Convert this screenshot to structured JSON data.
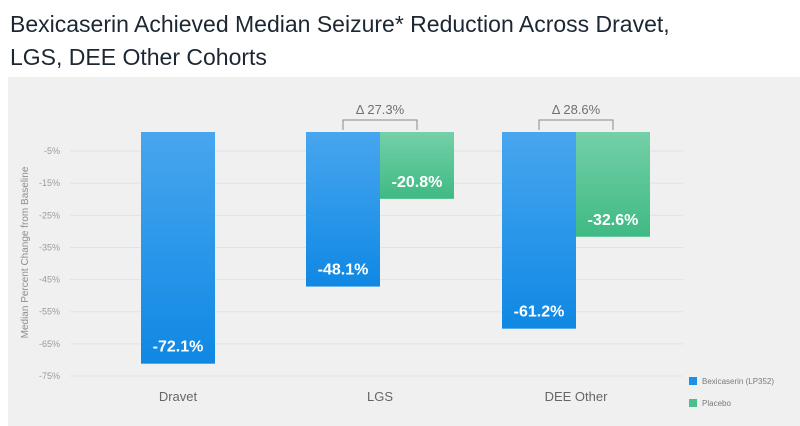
{
  "title": "Bexicaserin Achieved Median Seizure* Reduction Across Dravet, LGS, DEE Other Cohorts",
  "chart_data": {
    "type": "bar",
    "title": "Bexicaserin Achieved Median Seizure* Reduction Across Dravet, LGS, DEE Other Cohorts",
    "xlabel": "",
    "ylabel": "Median Percent Change from Baseline",
    "categories": [
      "Dravet",
      "LGS",
      "DEE Other"
    ],
    "ylim": [
      -75,
      0
    ],
    "yticks": [
      -5,
      -15,
      -25,
      -35,
      -45,
      -55,
      -65,
      -75
    ],
    "ytick_labels": [
      "-5%",
      "-15%",
      "-25%",
      "-35%",
      "-45%",
      "-55%",
      "-65%",
      "-75%"
    ],
    "grid": true,
    "legend_position": "bottom-right",
    "series": [
      {
        "name": "Bexicaserin (LP352)",
        "color": "#1e90e6",
        "values": [
          -72.1,
          -48.1,
          -61.2
        ],
        "labels": [
          "-72.1%",
          "-48.1%",
          "-61.2%"
        ]
      },
      {
        "name": "Placebo",
        "color": "#4cc08c",
        "values": [
          null,
          -20.8,
          -32.6
        ],
        "labels": [
          null,
          "-20.8%",
          "-32.6%"
        ]
      }
    ],
    "annotations": [
      {
        "category": "LGS",
        "text": "Δ 27.3%"
      },
      {
        "category": "DEE Other",
        "text": "Δ 28.6%"
      }
    ]
  }
}
